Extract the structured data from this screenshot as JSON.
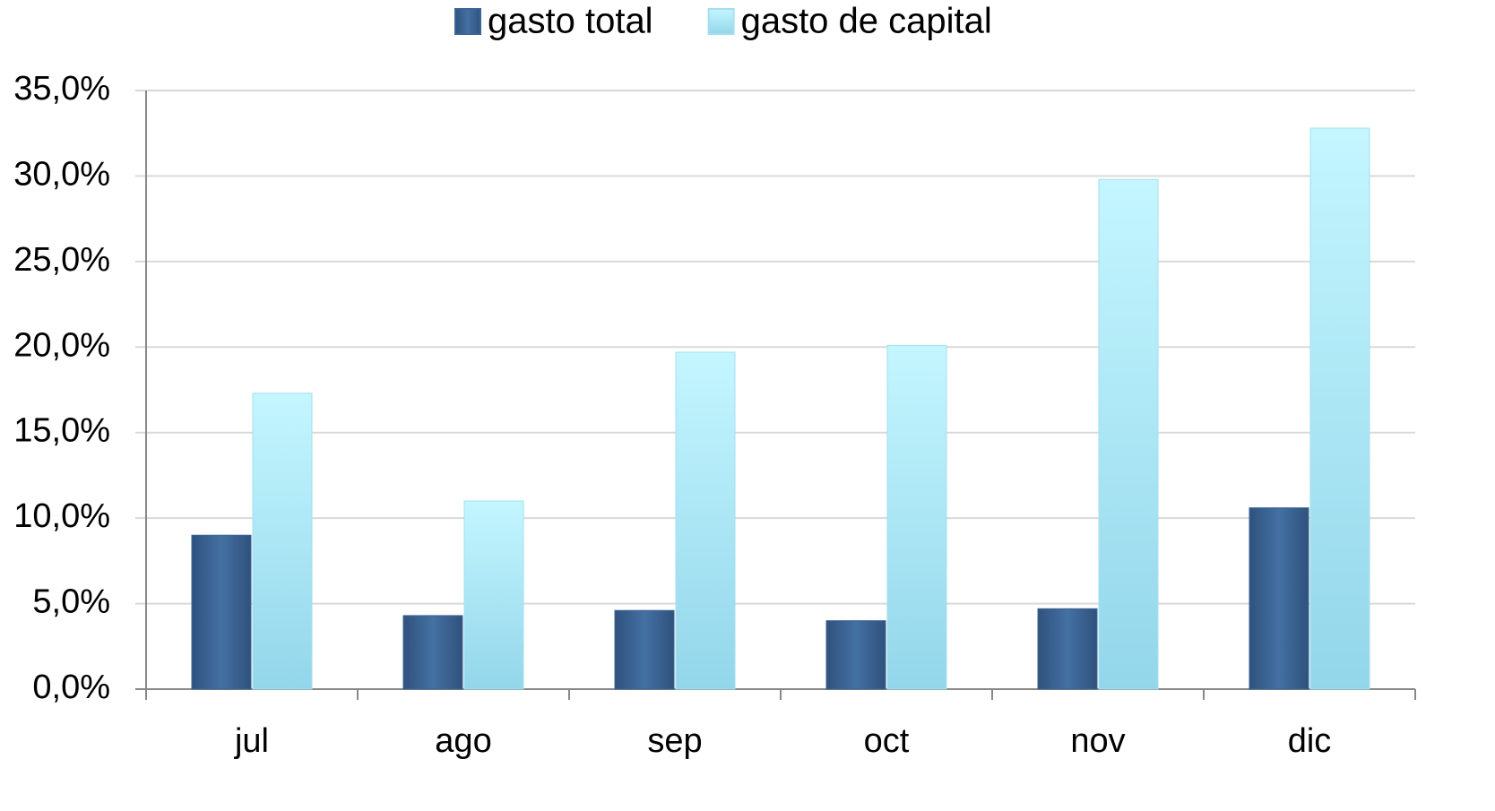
{
  "chart_data": {
    "type": "bar",
    "categories": [
      "jul",
      "ago",
      "sep",
      "oct",
      "nov",
      "dic"
    ],
    "series": [
      {
        "name": "gasto total",
        "color": "#3d6595",
        "values": [
          9.0,
          4.3,
          4.6,
          4.0,
          4.7,
          10.6
        ]
      },
      {
        "name": "gasto de capital",
        "color": "#a3dff0",
        "values": [
          17.3,
          11.0,
          19.7,
          20.1,
          29.8,
          32.8
        ]
      }
    ],
    "ylim": [
      0,
      35
    ],
    "yticks": [
      {
        "value": 0,
        "label": "0,0%"
      },
      {
        "value": 5,
        "label": "5,0%"
      },
      {
        "value": 10,
        "label": "10,0%"
      },
      {
        "value": 15,
        "label": "15,0%"
      },
      {
        "value": 20,
        "label": "20,0%"
      },
      {
        "value": 25,
        "label": "25,0%"
      },
      {
        "value": 30,
        "label": "30,0%"
      },
      {
        "value": 35,
        "label": "35,0%"
      }
    ],
    "grid": true,
    "legend": "top"
  }
}
